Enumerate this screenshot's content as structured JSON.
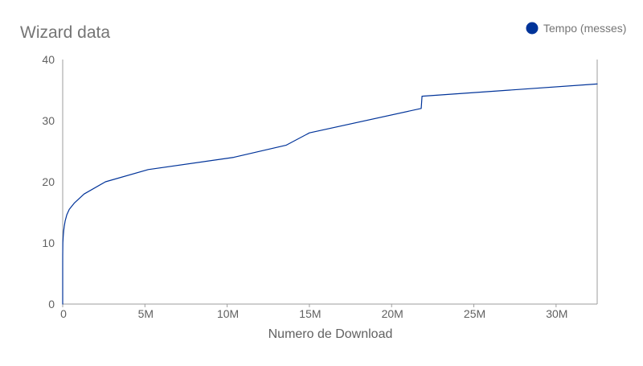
{
  "chart_data": {
    "type": "line",
    "title": "Wizard data",
    "xlabel": "Numero de Download",
    "ylabel": "",
    "legend": {
      "position": "top-right"
    },
    "grid": false,
    "xlim": [
      0,
      32500000
    ],
    "ylim": [
      0,
      40
    ],
    "x_ticks": [
      0,
      5000000,
      10000000,
      15000000,
      20000000,
      25000000,
      30000000
    ],
    "x_tick_labels": [
      "0",
      "5M",
      "10M",
      "15M",
      "20M",
      "25M",
      "30M"
    ],
    "y_ticks": [
      0,
      10,
      20,
      30,
      40
    ],
    "y_tick_labels": [
      "0",
      "10",
      "20",
      "30",
      "40"
    ],
    "series": [
      {
        "name": "Tempo (messes)",
        "color": "#003399",
        "x": [
          0,
          1,
          10,
          100,
          1000,
          10000,
          30000,
          60000,
          100000,
          150000,
          250000,
          400000,
          700000,
          1300000,
          2600000,
          5200000,
          10400000,
          13600000,
          15000000,
          21800000,
          21850000,
          32500000
        ],
        "y": [
          0,
          2,
          4,
          6,
          8,
          10,
          11,
          12,
          12.8,
          13.6,
          14.6,
          15.5,
          16.5,
          18,
          20,
          22,
          24,
          26,
          28,
          32,
          34,
          36
        ]
      }
    ]
  }
}
